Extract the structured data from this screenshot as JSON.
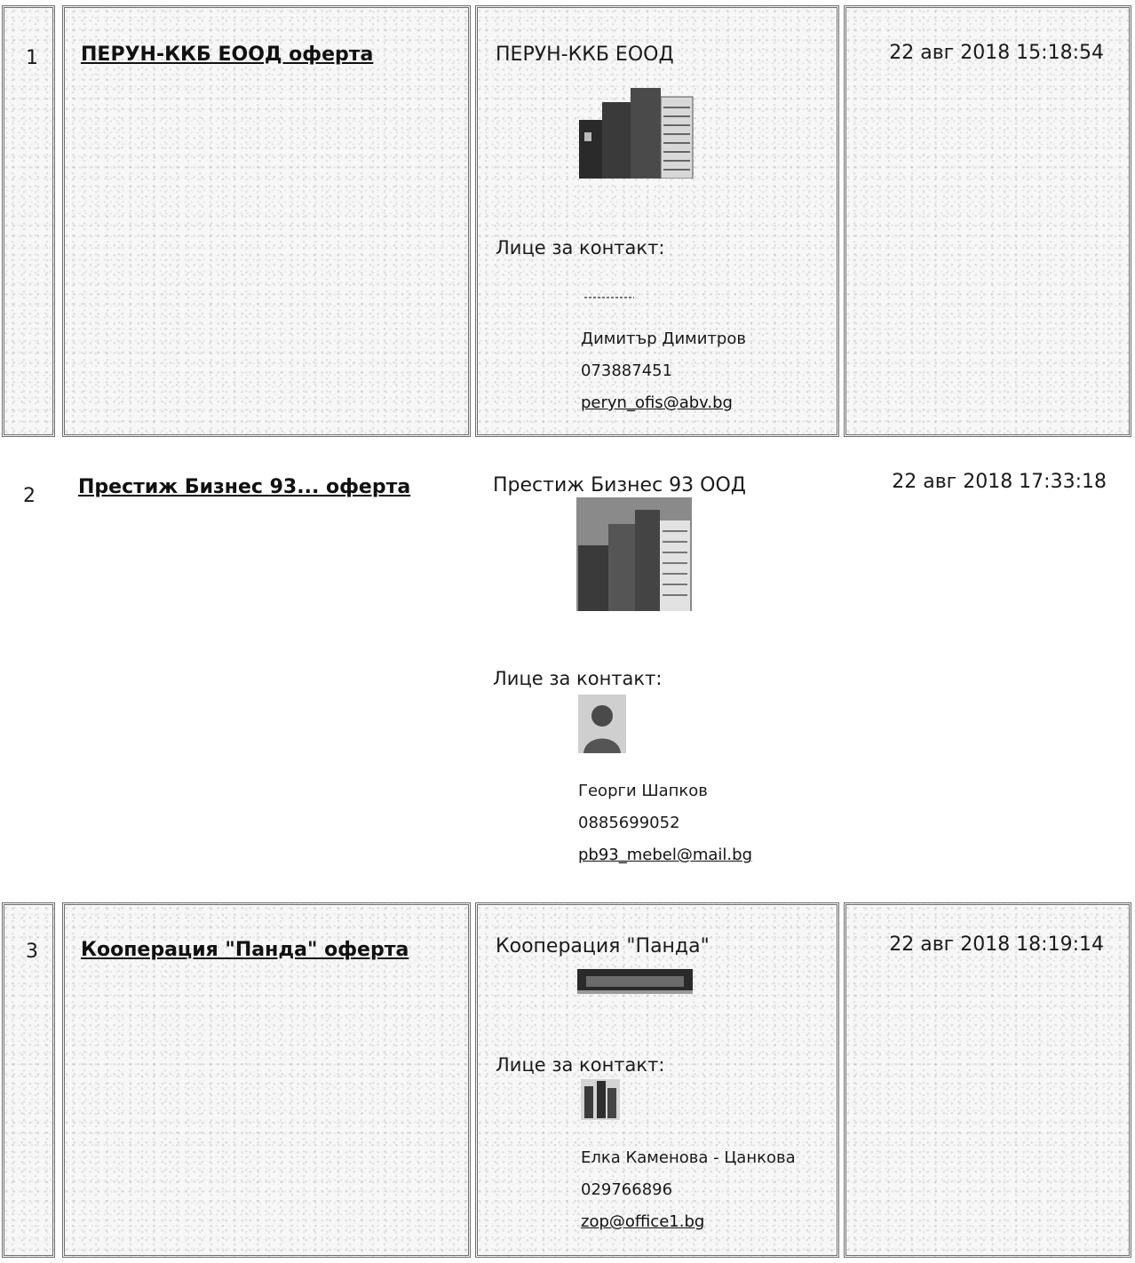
{
  "offers": [
    {
      "number": "1",
      "offer_title": "ПЕРУН-ККБ ЕООД оферта",
      "company": "ПЕРУН-ККБ ЕООД",
      "contact_label": "Лице за контакт:",
      "contact_name": "Димитър Димитров",
      "phone": "073887451",
      "email": "peryn_ofis@abv.bg",
      "date": "22 авг 2018 15:18:54"
    },
    {
      "number": "2",
      "offer_title": "Престиж Бизнес 93... оферта",
      "company": "Престиж Бизнес 93 ООД",
      "contact_label": "Лице за контакт:",
      "contact_name": "Георги Шапков",
      "phone": "0885699052",
      "email": "pb93_mebel@mail.bg",
      "date": "22 авг 2018 17:33:18"
    },
    {
      "number": "3",
      "offer_title": "Кооперация \"Панда\" оферта",
      "company": "Кооперация \"Панда\"",
      "contact_label": "Лице за контакт:",
      "contact_name": "Елка Каменова - Цанкова",
      "phone": "029766896",
      "email": "zop@office1.bg",
      "date": "22 авг 2018 18:19:14"
    }
  ]
}
